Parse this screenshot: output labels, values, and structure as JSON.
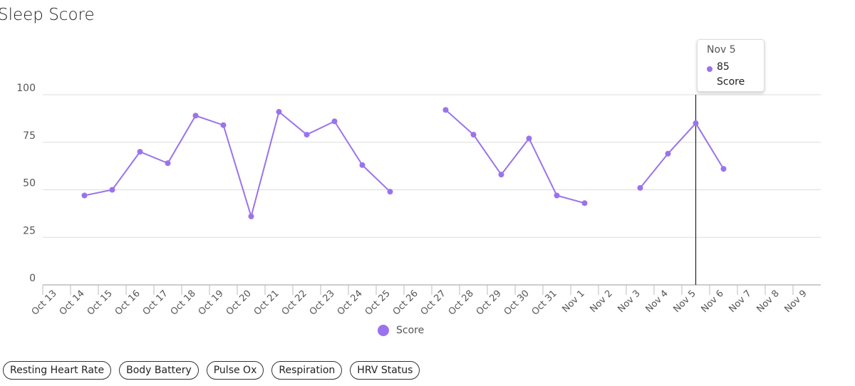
{
  "page_title": "Sleep Score",
  "chart_data": {
    "type": "line",
    "categories": [
      "Oct 13",
      "Oct 14",
      "Oct 15",
      "Oct 16",
      "Oct 17",
      "Oct 18",
      "Oct 19",
      "Oct 20",
      "Oct 21",
      "Oct 22",
      "Oct 23",
      "Oct 24",
      "Oct 25",
      "Oct 26",
      "Oct 27",
      "Oct 28",
      "Oct 29",
      "Oct 30",
      "Oct 31",
      "Nov 1",
      "Nov 2",
      "Nov 3",
      "Nov 4",
      "Nov 5",
      "Nov 6",
      "Nov 7",
      "Nov 8",
      "Nov 9"
    ],
    "series": [
      {
        "name": "Score",
        "color": "#9a73ec",
        "values": [
          null,
          47,
          50,
          70,
          64,
          89,
          84,
          36,
          91,
          79,
          86,
          63,
          49,
          null,
          92,
          79,
          58,
          77,
          47,
          43,
          null,
          51,
          69,
          85,
          61,
          null,
          null,
          null
        ]
      }
    ],
    "ylim": [
      0,
      100
    ],
    "yticks": [
      0,
      25,
      50,
      75,
      100
    ],
    "grid": true,
    "tooltip": {
      "category": "Nov 5",
      "value": 85,
      "series": "Score"
    }
  },
  "buttons": [
    "Resting Heart Rate",
    "Body Battery",
    "Pulse Ox",
    "Respiration",
    "HRV Status"
  ]
}
